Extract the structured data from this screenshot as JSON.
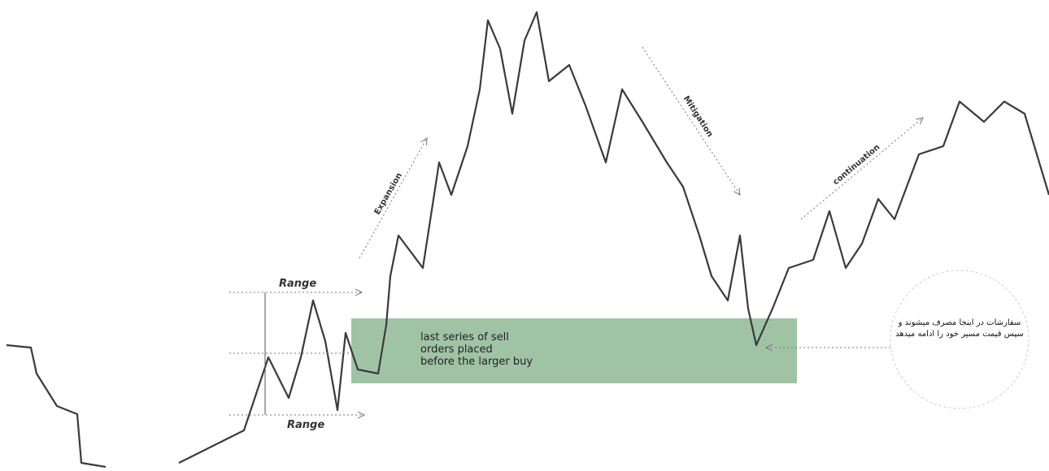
{
  "annotations": {
    "range_top": "Range",
    "range_bottom": "Range",
    "expansion": "Expansion",
    "mitigation": "Mitigation",
    "continuation": "continuation",
    "zone_text": [
      "last series of sell",
      "orders placed",
      "before the larger buy"
    ],
    "note": [
      "سفارشات در اینجا مصرف میشوند و",
      "سپس قیمت مسیر خود را ادامه میدهد"
    ]
  }
}
